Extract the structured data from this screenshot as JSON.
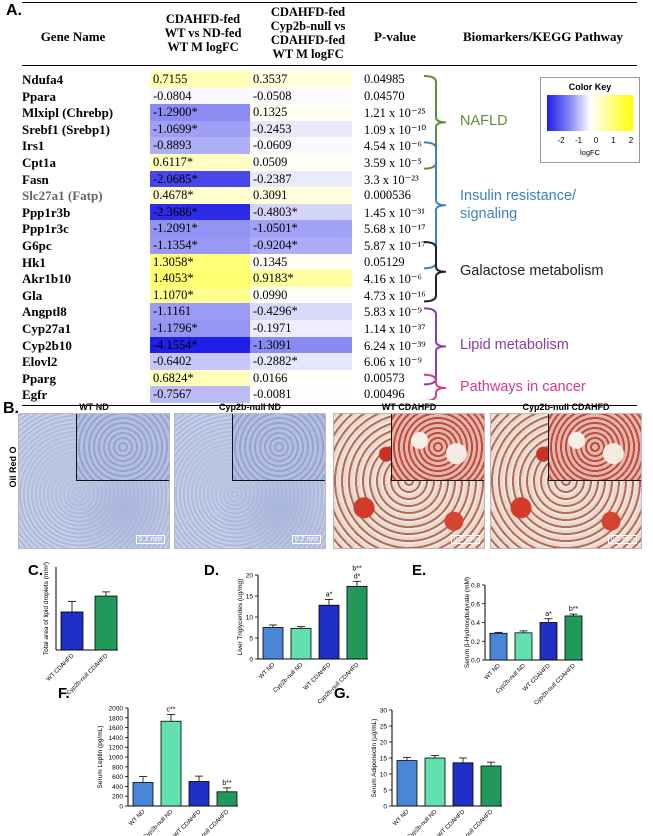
{
  "panelA": {
    "label": "A.",
    "headers": {
      "gene": "Gene Name",
      "col1": [
        "CDAHFD-fed",
        "WT vs ND-fed",
        "WT M logFC"
      ],
      "col2": [
        "CDAHFD-fed",
        "Cyp2b-null vs",
        "CDAHFD-fed",
        "WT M logFC"
      ],
      "pvalue": "P-value",
      "pathway": "Biomarkers/KEGG Pathway"
    },
    "rows": [
      {
        "gene": "Ndufa4",
        "c1": "0.7155",
        "c2": "0.3537",
        "p": "0.04985",
        "v1": 0.7155,
        "v2": 0.3537
      },
      {
        "gene": "Ppara",
        "c1": "-0.0804",
        "c2": "-0.0508",
        "p": "0.04570",
        "v1": -0.0804,
        "v2": -0.0508
      },
      {
        "gene": "Mlxipl (Chrebp)",
        "c1": "-1.2900*",
        "c2": "0.1325",
        "p": "1.21 x 10⁻²⁵",
        "v1": -1.29,
        "v2": 0.1325
      },
      {
        "gene": "Srebf1 (Srebp1)",
        "c1": "-1.0699*",
        "c2": "-0.2453",
        "p": "1.09 x 10⁻¹⁰",
        "v1": -1.0699,
        "v2": -0.2453
      },
      {
        "gene": "Irs1",
        "c1": "-0.8893",
        "c2": "-0.0609",
        "p": "4.54 x 10⁻⁶",
        "v1": -0.8893,
        "v2": -0.0609
      },
      {
        "gene": "Cpt1a",
        "c1": "0.6117*",
        "c2": "0.0509",
        "p": "3.59 x 10⁻⁵",
        "v1": 0.6117,
        "v2": 0.0509
      },
      {
        "gene": "Fasn",
        "c1": "-2.0685*",
        "c2": "-0.2387",
        "p": "3.3 x 10⁻²³",
        "v1": -2.0685,
        "v2": -0.2387
      },
      {
        "gene": "Slc27a1 (Fatp)",
        "c1": "0.4678*",
        "c2": "0.3091",
        "p": "0.000536",
        "v1": 0.4678,
        "v2": 0.3091,
        "gray": true
      },
      {
        "gene": "Ppp1r3b",
        "c1": "-2.3686*",
        "c2": "-0.4803*",
        "p": "1.45 x 10⁻³¹",
        "v1": -2.3686,
        "v2": -0.4803
      },
      {
        "gene": "Ppp1r3c",
        "c1": "-1.2091*",
        "c2": "-1.0501*",
        "p": "5.68 x 10⁻¹⁷",
        "v1": -1.2091,
        "v2": -1.0501
      },
      {
        "gene": "G6pc",
        "c1": "-1.1354*",
        "c2": "-0.9204*",
        "p": "5.87 x 10⁻¹⁷",
        "v1": -1.1354,
        "v2": -0.9204
      },
      {
        "gene": "Hk1",
        "c1": "1.3058*",
        "c2": "0.1345",
        "p": "0.05129",
        "v1": 1.3058,
        "v2": 0.1345
      },
      {
        "gene": "Akr1b10",
        "c1": "1.4053*",
        "c2": "0.9183*",
        "p": "4.16 x 10⁻⁶",
        "v1": 1.4053,
        "v2": 0.9183
      },
      {
        "gene": "Gla",
        "c1": "1.1070*",
        "c2": "0.0990",
        "p": "4.73 x 10⁻¹⁶",
        "v1": 1.107,
        "v2": 0.099
      },
      {
        "gene": "Angptl8",
        "c1": "-1.1161",
        "c2": "-0.4296*",
        "p": "5.83 x 10⁻⁹",
        "v1": -1.1161,
        "v2": -0.4296
      },
      {
        "gene": "Cyp27a1",
        "c1": "-1.1796*",
        "c2": "-0.1971",
        "p": "1.14 x 10⁻³⁷",
        "v1": -1.1796,
        "v2": -0.1971
      },
      {
        "gene": "Cyp2b10",
        "c1": "-4.1554*",
        "c2": "-1.3091",
        "p": "6.24 x 10⁻³⁹",
        "v1": -4.1554,
        "v2": -1.3091
      },
      {
        "gene": "Elovl2",
        "c1": "-0.6402",
        "c2": "-0.2882*",
        "p": "6.06 x 10⁻⁹",
        "v1": -0.6402,
        "v2": -0.2882
      },
      {
        "gene": "Pparg",
        "c1": "0.6824*",
        "c2": "0.0166",
        "p": "0.00573",
        "v1": 0.6824,
        "v2": 0.0166
      },
      {
        "gene": "Egfr",
        "c1": "-0.7567",
        "c2": "-0.0081",
        "p": "0.00496",
        "v1": -0.7567,
        "v2": -0.0081
      }
    ],
    "color_key": {
      "title": "Color Key",
      "ticks": [
        "-2",
        "-1",
        "0",
        "1",
        "2"
      ],
      "xlabel": "logFC"
    },
    "pathways": [
      {
        "label": "NAFLD",
        "color": "#5a8f3a",
        "start": 0,
        "end": 5
      },
      {
        "label": "Insulin resistance/ signaling",
        "color": "#3b82c4",
        "start": 4,
        "end": 11
      },
      {
        "label": "Galactose metabolism",
        "color": "#222222",
        "start": 10,
        "end": 13
      },
      {
        "label": "Lipid metabolism",
        "color": "#8e3ca8",
        "start": 14,
        "end": 18
      },
      {
        "label": "Pathways in cancer",
        "color": "#d63a8a",
        "start": 18,
        "end": 19
      }
    ]
  },
  "panelB": {
    "label": "B.",
    "ylabel": "Oil Red O",
    "images": [
      {
        "title": "WT ND",
        "scale": "0.2 mm"
      },
      {
        "title": "Cyp2b-null ND",
        "scale": "0.2 mm"
      },
      {
        "title": "WT CDAHFD",
        "scale": "0.2 mm"
      },
      {
        "title": "Cyp2b-null CDAHFD",
        "scale": "0.2 mm"
      }
    ]
  },
  "chart_data": [
    {
      "panel": "C.",
      "type": "bar",
      "ylabel": "Total area of lipid droplets (mm²)",
      "categories": [
        "WT CDAHFD",
        "Cyp2b-null CDAHFD"
      ],
      "values": [
        0.55,
        0.78
      ],
      "errors": [
        0.15,
        0.06
      ],
      "ylim": [
        0,
        1.2
      ],
      "colors": [
        "#1f2ec4",
        "#1f9a5a"
      ],
      "annotations": [
        "",
        ""
      ]
    },
    {
      "panel": "D.",
      "type": "bar",
      "ylabel": "Liver Triglycerides (ug/mg)",
      "categories": [
        "WT ND",
        "Cyp2b-null ND",
        "WT CDAHFD",
        "Cyp2b-null CDAHFD"
      ],
      "values": [
        7.5,
        7.3,
        12.8,
        17.3
      ],
      "errors": [
        0.6,
        0.4,
        1.4,
        1.2
      ],
      "yticks": [
        0,
        5,
        10,
        15,
        20
      ],
      "ylim": [
        0,
        20
      ],
      "colors": [
        "#4a86d8",
        "#62e0b0",
        "#1f2ec4",
        "#1f9a5a"
      ],
      "annotations": [
        "",
        "",
        "a*",
        "b**\nd*"
      ]
    },
    {
      "panel": "E.",
      "type": "bar",
      "ylabel": "Serum β-Hydroxybutyrate (mM)",
      "categories": [
        "WT ND",
        "Cyp2b-null ND",
        "WT CDAHFD",
        "Cyp2b-null CDAHFD"
      ],
      "values": [
        0.285,
        0.29,
        0.4,
        0.47
      ],
      "errors": [
        0.01,
        0.02,
        0.04,
        0.02
      ],
      "yticks": [
        0.0,
        0.2,
        0.4,
        0.6,
        0.8
      ],
      "ylim": [
        0,
        0.8
      ],
      "colors": [
        "#4a86d8",
        "#62e0b0",
        "#1f2ec4",
        "#1f9a5a"
      ],
      "annotations": [
        "",
        "",
        "a*",
        "b**"
      ]
    },
    {
      "panel": "F.",
      "type": "bar",
      "ylabel": "Serum Leptin (pg/mL)",
      "categories": [
        "WT ND",
        "Cyp2b-null ND",
        "WT CDAHFD",
        "Cyp2b-null CDAHFD"
      ],
      "values": [
        480,
        1730,
        500,
        290
      ],
      "errors": [
        120,
        140,
        110,
        80
      ],
      "yticks": [
        0,
        200,
        400,
        600,
        800,
        1000,
        1200,
        1400,
        1600,
        1800,
        2000
      ],
      "ylim": [
        0,
        2000
      ],
      "colors": [
        "#4a86d8",
        "#62e0b0",
        "#1f2ec4",
        "#1f9a5a"
      ],
      "annotations": [
        "",
        "c**",
        "",
        "b**"
      ]
    },
    {
      "panel": "G.",
      "type": "bar",
      "ylabel": "Serum Adiponectin (µg/mL)",
      "categories": [
        "WT ND",
        "Cyp2b-null ND",
        "WT CDAHFD",
        "Cyp2b-null CDAHFD"
      ],
      "values": [
        14.2,
        15.0,
        13.5,
        12.5
      ],
      "errors": [
        1.0,
        0.8,
        1.5,
        1.2
      ],
      "yticks": [
        0,
        5,
        10,
        15,
        20,
        25,
        30
      ],
      "ylim": [
        0,
        30
      ],
      "colors": [
        "#4a86d8",
        "#62e0b0",
        "#1f2ec4",
        "#1f9a5a"
      ],
      "annotations": [
        "",
        "",
        "",
        ""
      ]
    }
  ]
}
